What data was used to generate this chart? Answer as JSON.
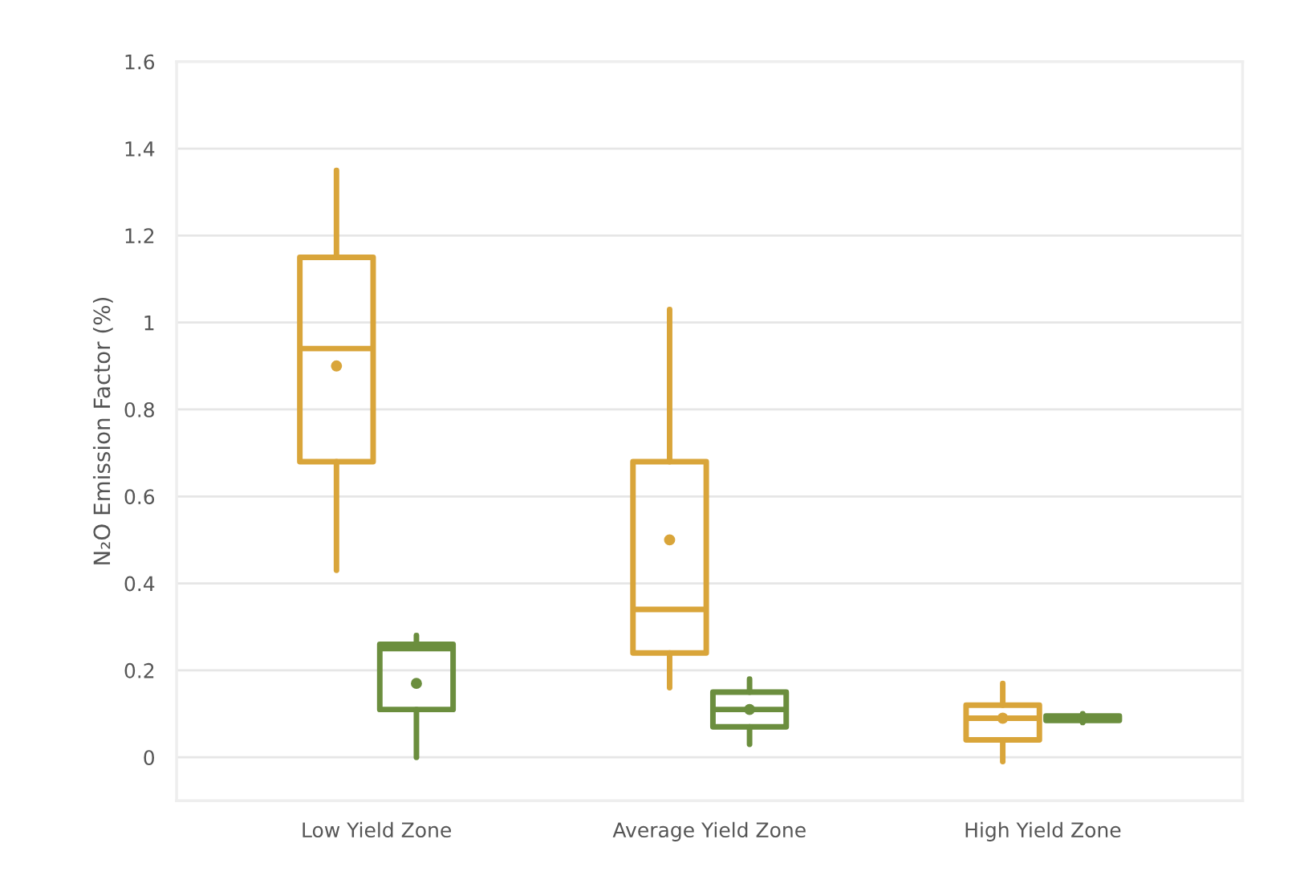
{
  "chart_data": {
    "type": "box",
    "ylabel": "N₂O Emission Factor (%)",
    "categories": [
      "Low Yield Zone",
      "Average Yield Zone",
      "High Yield Zone"
    ],
    "series": [
      {
        "color": "#d9a53a",
        "boxes": [
          {
            "low": 0.43,
            "q1": 0.68,
            "median": 0.94,
            "q3": 1.15,
            "high": 1.35,
            "mean": 0.9
          },
          {
            "low": 0.16,
            "q1": 0.24,
            "median": 0.34,
            "q3": 0.68,
            "high": 1.03,
            "mean": 0.5
          },
          {
            "low": -0.01,
            "q1": 0.04,
            "median": 0.09,
            "q3": 0.12,
            "high": 0.17,
            "mean": 0.09
          }
        ]
      },
      {
        "color": "#6b8e3e",
        "boxes": [
          {
            "low": 0.0,
            "q1": 0.11,
            "median": 0.25,
            "q3": 0.26,
            "high": 0.28,
            "mean": 0.17
          },
          {
            "low": 0.03,
            "q1": 0.07,
            "median": 0.11,
            "q3": 0.15,
            "high": 0.18,
            "mean": 0.11
          },
          {
            "low": 0.08,
            "q1": 0.085,
            "median": 0.09,
            "q3": 0.095,
            "high": 0.1,
            "mean": 0.09
          }
        ]
      }
    ],
    "ylim": [
      -0.1,
      1.6
    ],
    "yticks": [
      0,
      0.2,
      0.4,
      0.6,
      0.8,
      1,
      1.2,
      1.4,
      1.6
    ],
    "grid": "y"
  }
}
